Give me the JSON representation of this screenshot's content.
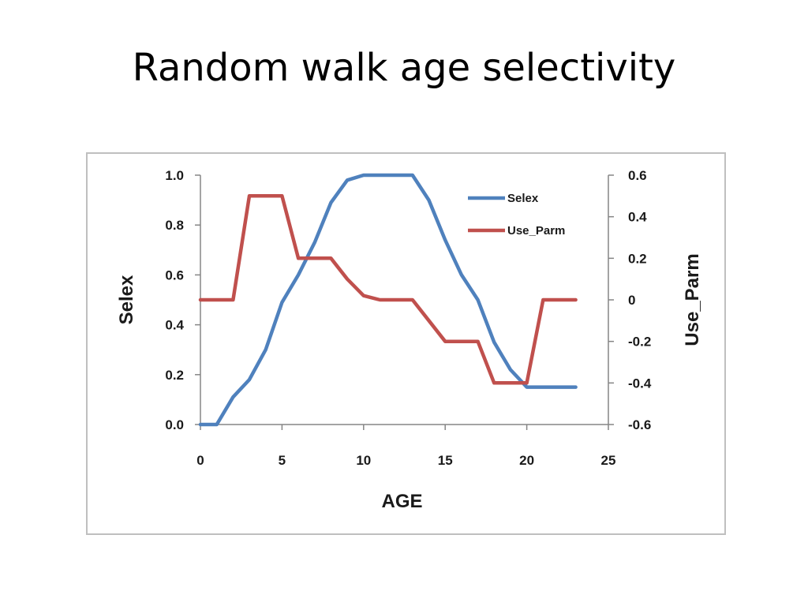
{
  "slide": {
    "title": "Random walk age selectivity"
  },
  "chart_data": {
    "type": "line",
    "title": "",
    "xlabel": "AGE",
    "ylabel": "Selex",
    "y2label": "Use_Parm",
    "xlim": [
      0,
      25
    ],
    "ylim": [
      0,
      1
    ],
    "y2lim": [
      -0.6,
      0.6
    ],
    "x_ticks": [
      "0",
      "5",
      "10",
      "15",
      "20",
      "25"
    ],
    "y_ticks": [
      "0.0",
      "0.2",
      "0.4",
      "0.6",
      "0.8",
      "1.0"
    ],
    "y2_ticks": [
      "-0.6",
      "-0.4",
      "-0.2",
      "0",
      "0.2",
      "0.4",
      "0.6"
    ],
    "grid": false,
    "legend_position": "top-right",
    "series": [
      {
        "name": "Selex",
        "axis": "left",
        "color": "#4f81bd",
        "x": [
          0,
          1,
          2,
          3,
          4,
          5,
          6,
          7,
          8,
          9,
          10,
          11,
          12,
          13,
          14,
          15,
          16,
          17,
          18,
          19,
          20,
          21,
          22,
          23
        ],
        "y": [
          0.0,
          0.0,
          0.11,
          0.18,
          0.3,
          0.49,
          0.6,
          0.73,
          0.89,
          0.98,
          1.0,
          1.0,
          1.0,
          1.0,
          0.9,
          0.74,
          0.6,
          0.5,
          0.33,
          0.22,
          0.15,
          0.15,
          0.15,
          0.15
        ]
      },
      {
        "name": "Use_Parm",
        "axis": "right",
        "color": "#c0504d",
        "x": [
          0,
          1,
          2,
          3,
          4,
          5,
          6,
          7,
          8,
          9,
          10,
          11,
          12,
          13,
          14,
          15,
          16,
          17,
          18,
          19,
          20,
          21,
          22,
          23
        ],
        "y": [
          0.0,
          0.0,
          0.0,
          0.5,
          0.5,
          0.5,
          0.2,
          0.2,
          0.2,
          0.1,
          0.02,
          0.0,
          0.0,
          0.0,
          -0.1,
          -0.2,
          -0.2,
          -0.2,
          -0.4,
          -0.4,
          -0.4,
          0.0,
          0.0,
          0.0
        ]
      }
    ]
  }
}
